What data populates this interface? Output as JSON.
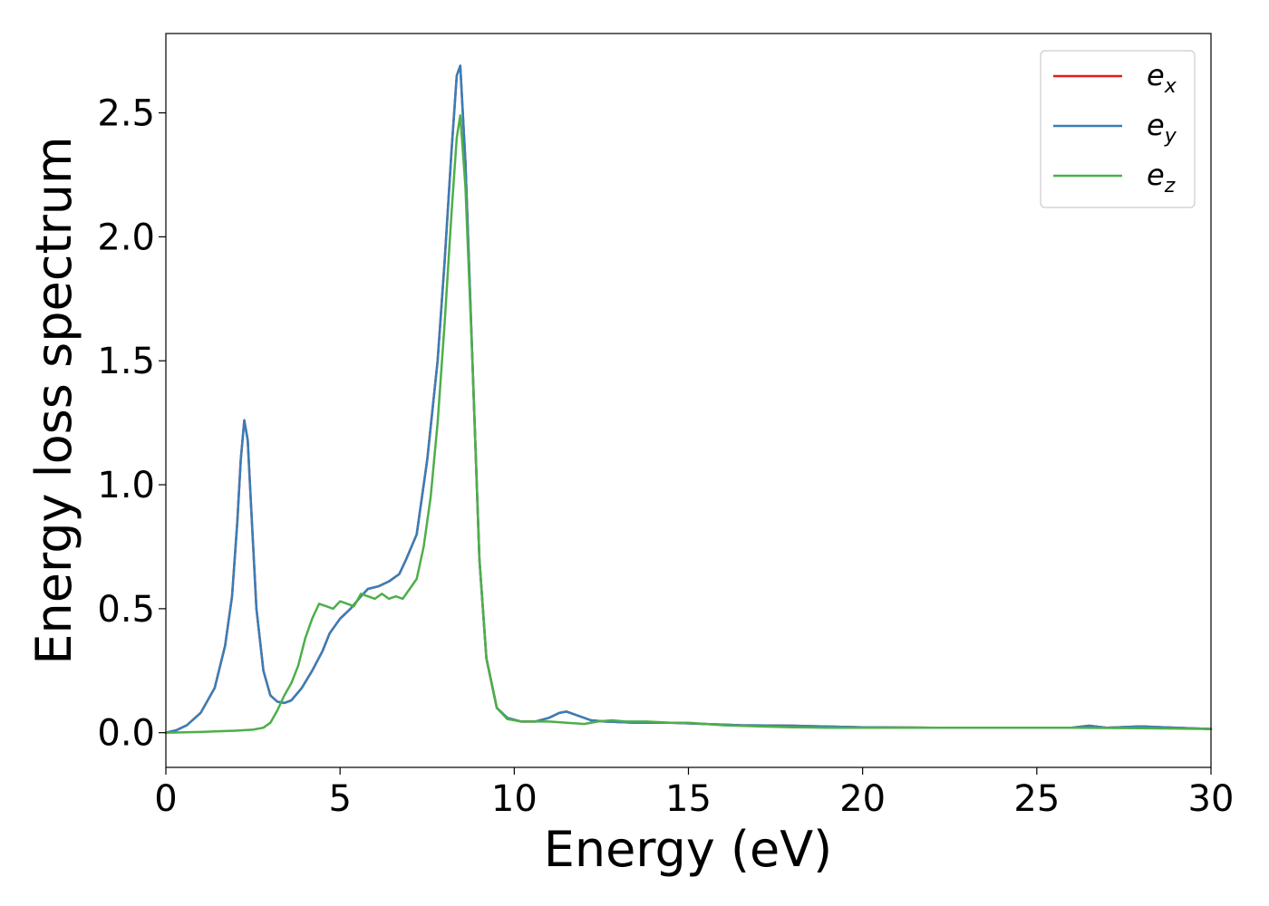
{
  "chart_data": {
    "type": "line",
    "title": "",
    "xlabel": "Energy (eV)",
    "ylabel": "Energy loss spectrum",
    "xlim": [
      0,
      30
    ],
    "ylim": [
      -0.14,
      2.82
    ],
    "xticks": [
      "0",
      "5",
      "10",
      "15",
      "20",
      "25",
      "30"
    ],
    "yticks": [
      "0.0",
      "0.5",
      "1.0",
      "1.5",
      "2.0",
      "2.5"
    ],
    "grid": false,
    "legend_position": "top-right",
    "series": [
      {
        "name": "e_x",
        "legend_base": "e",
        "legend_sub": "x",
        "color": "#e41a1c",
        "points": [
          [
            0,
            0.0
          ],
          [
            0.3,
            0.01
          ],
          [
            0.6,
            0.03
          ],
          [
            1.0,
            0.08
          ],
          [
            1.4,
            0.18
          ],
          [
            1.7,
            0.35
          ],
          [
            1.9,
            0.55
          ],
          [
            2.05,
            0.85
          ],
          [
            2.15,
            1.1
          ],
          [
            2.25,
            1.26
          ],
          [
            2.35,
            1.18
          ],
          [
            2.45,
            0.9
          ],
          [
            2.6,
            0.5
          ],
          [
            2.8,
            0.25
          ],
          [
            3.0,
            0.15
          ],
          [
            3.2,
            0.125
          ],
          [
            3.4,
            0.12
          ],
          [
            3.6,
            0.13
          ],
          [
            3.9,
            0.18
          ],
          [
            4.2,
            0.25
          ],
          [
            4.5,
            0.33
          ],
          [
            4.7,
            0.4
          ],
          [
            5.0,
            0.46
          ],
          [
            5.3,
            0.5
          ],
          [
            5.6,
            0.55
          ],
          [
            5.8,
            0.58
          ],
          [
            6.1,
            0.59
          ],
          [
            6.4,
            0.61
          ],
          [
            6.7,
            0.64
          ],
          [
            6.9,
            0.7
          ],
          [
            7.2,
            0.8
          ],
          [
            7.5,
            1.1
          ],
          [
            7.8,
            1.5
          ],
          [
            8.0,
            1.9
          ],
          [
            8.2,
            2.35
          ],
          [
            8.35,
            2.65
          ],
          [
            8.45,
            2.69
          ],
          [
            8.6,
            2.3
          ],
          [
            8.8,
            1.5
          ],
          [
            9.0,
            0.7
          ],
          [
            9.2,
            0.3
          ],
          [
            9.5,
            0.1
          ],
          [
            9.8,
            0.06
          ],
          [
            10.2,
            0.045
          ],
          [
            10.6,
            0.045
          ],
          [
            11.0,
            0.06
          ],
          [
            11.3,
            0.08
          ],
          [
            11.5,
            0.085
          ],
          [
            11.8,
            0.07
          ],
          [
            12.2,
            0.05
          ],
          [
            12.6,
            0.045
          ],
          [
            13.5,
            0.04
          ],
          [
            14.5,
            0.04
          ],
          [
            15.5,
            0.035
          ],
          [
            16.5,
            0.03
          ],
          [
            18.0,
            0.028
          ],
          [
            20.0,
            0.022
          ],
          [
            22.0,
            0.02
          ],
          [
            24.0,
            0.02
          ],
          [
            26.0,
            0.02
          ],
          [
            26.5,
            0.028
          ],
          [
            27.0,
            0.02
          ],
          [
            28.0,
            0.025
          ],
          [
            29.0,
            0.02
          ],
          [
            30.0,
            0.015
          ]
        ]
      },
      {
        "name": "e_y",
        "legend_base": "e",
        "legend_sub": "y",
        "color": "#377eb8",
        "points": [
          [
            0,
            0.0
          ],
          [
            0.3,
            0.01
          ],
          [
            0.6,
            0.03
          ],
          [
            1.0,
            0.08
          ],
          [
            1.4,
            0.18
          ],
          [
            1.7,
            0.35
          ],
          [
            1.9,
            0.55
          ],
          [
            2.05,
            0.85
          ],
          [
            2.15,
            1.1
          ],
          [
            2.25,
            1.26
          ],
          [
            2.35,
            1.18
          ],
          [
            2.45,
            0.9
          ],
          [
            2.6,
            0.5
          ],
          [
            2.8,
            0.25
          ],
          [
            3.0,
            0.15
          ],
          [
            3.2,
            0.125
          ],
          [
            3.4,
            0.12
          ],
          [
            3.6,
            0.13
          ],
          [
            3.9,
            0.18
          ],
          [
            4.2,
            0.25
          ],
          [
            4.5,
            0.33
          ],
          [
            4.7,
            0.4
          ],
          [
            5.0,
            0.46
          ],
          [
            5.3,
            0.5
          ],
          [
            5.6,
            0.55
          ],
          [
            5.8,
            0.58
          ],
          [
            6.1,
            0.59
          ],
          [
            6.4,
            0.61
          ],
          [
            6.7,
            0.64
          ],
          [
            6.9,
            0.7
          ],
          [
            7.2,
            0.8
          ],
          [
            7.5,
            1.1
          ],
          [
            7.8,
            1.5
          ],
          [
            8.0,
            1.9
          ],
          [
            8.2,
            2.35
          ],
          [
            8.35,
            2.65
          ],
          [
            8.45,
            2.69
          ],
          [
            8.6,
            2.3
          ],
          [
            8.8,
            1.5
          ],
          [
            9.0,
            0.7
          ],
          [
            9.2,
            0.3
          ],
          [
            9.5,
            0.1
          ],
          [
            9.8,
            0.06
          ],
          [
            10.2,
            0.045
          ],
          [
            10.6,
            0.045
          ],
          [
            11.0,
            0.06
          ],
          [
            11.3,
            0.08
          ],
          [
            11.5,
            0.085
          ],
          [
            11.8,
            0.07
          ],
          [
            12.2,
            0.05
          ],
          [
            12.6,
            0.045
          ],
          [
            13.5,
            0.04
          ],
          [
            14.5,
            0.04
          ],
          [
            15.5,
            0.035
          ],
          [
            16.5,
            0.03
          ],
          [
            18.0,
            0.028
          ],
          [
            20.0,
            0.022
          ],
          [
            22.0,
            0.02
          ],
          [
            24.0,
            0.02
          ],
          [
            26.0,
            0.02
          ],
          [
            26.5,
            0.028
          ],
          [
            27.0,
            0.02
          ],
          [
            28.0,
            0.025
          ],
          [
            29.0,
            0.02
          ],
          [
            30.0,
            0.015
          ]
        ]
      },
      {
        "name": "e_z",
        "legend_base": "e",
        "legend_sub": "z",
        "color": "#4daf4a",
        "points": [
          [
            0,
            0.0
          ],
          [
            1.0,
            0.003
          ],
          [
            2.0,
            0.008
          ],
          [
            2.5,
            0.012
          ],
          [
            2.8,
            0.02
          ],
          [
            3.0,
            0.04
          ],
          [
            3.2,
            0.09
          ],
          [
            3.4,
            0.15
          ],
          [
            3.6,
            0.2
          ],
          [
            3.8,
            0.27
          ],
          [
            4.0,
            0.38
          ],
          [
            4.2,
            0.46
          ],
          [
            4.4,
            0.52
          ],
          [
            4.6,
            0.51
          ],
          [
            4.8,
            0.5
          ],
          [
            5.0,
            0.53
          ],
          [
            5.2,
            0.52
          ],
          [
            5.4,
            0.51
          ],
          [
            5.6,
            0.56
          ],
          [
            5.8,
            0.55
          ],
          [
            6.0,
            0.54
          ],
          [
            6.2,
            0.56
          ],
          [
            6.4,
            0.54
          ],
          [
            6.6,
            0.55
          ],
          [
            6.8,
            0.54
          ],
          [
            7.0,
            0.58
          ],
          [
            7.2,
            0.62
          ],
          [
            7.4,
            0.75
          ],
          [
            7.6,
            0.95
          ],
          [
            7.8,
            1.25
          ],
          [
            8.0,
            1.65
          ],
          [
            8.2,
            2.1
          ],
          [
            8.35,
            2.4
          ],
          [
            8.45,
            2.49
          ],
          [
            8.6,
            2.2
          ],
          [
            8.8,
            1.5
          ],
          [
            9.0,
            0.7
          ],
          [
            9.2,
            0.3
          ],
          [
            9.5,
            0.1
          ],
          [
            9.8,
            0.055
          ],
          [
            10.2,
            0.045
          ],
          [
            11.0,
            0.045
          ],
          [
            11.5,
            0.04
          ],
          [
            12.0,
            0.035
          ],
          [
            12.4,
            0.045
          ],
          [
            12.8,
            0.05
          ],
          [
            13.2,
            0.045
          ],
          [
            13.8,
            0.045
          ],
          [
            14.5,
            0.04
          ],
          [
            15.0,
            0.04
          ],
          [
            16.0,
            0.03
          ],
          [
            17.0,
            0.025
          ],
          [
            18.0,
            0.022
          ],
          [
            19.0,
            0.02
          ],
          [
            20.0,
            0.02
          ],
          [
            22.0,
            0.02
          ],
          [
            24.0,
            0.02
          ],
          [
            26.0,
            0.02
          ],
          [
            28.0,
            0.018
          ],
          [
            30.0,
            0.015
          ]
        ]
      }
    ]
  }
}
